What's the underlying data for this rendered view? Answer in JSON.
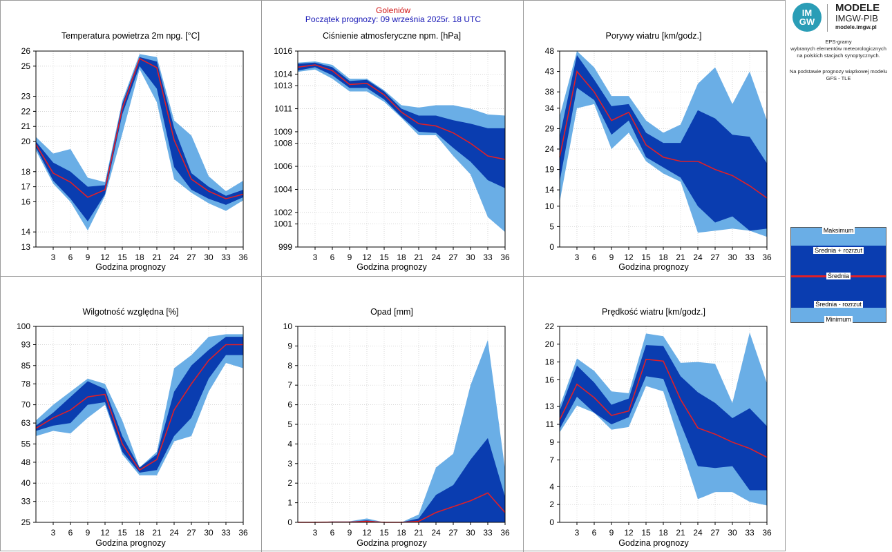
{
  "header": {
    "station": "Goleniów",
    "forecast_start": "Początek prognozy: 09 września 2025r. 18 UTC"
  },
  "logo": {
    "mark_line1": "IM",
    "mark_line2": "GW",
    "title_line1": "MODELE",
    "title_line2": "IMGW-PIB",
    "url": "modele.imgw.pl"
  },
  "info": {
    "line1": "EPS-gramy",
    "line2": "wybranych elementów meteorologicznych",
    "line3": "na polskich stacjach  synoptycznych.",
    "line4": "Na podstawie prognozy wiązkowej modelu",
    "line5": "GFS - TLE"
  },
  "legend": {
    "max": "Maksimum",
    "mean_plus": "Średnia + rozrzut",
    "mean": "Średnia",
    "mean_minus": "Średnia - rozrzut",
    "min": "Minimum"
  },
  "colors": {
    "outer_band": "#6aaee6",
    "inner_band": "#0a3db0",
    "mean_line": "#e21f26",
    "header_station": "#d01010",
    "header_start": "#1515b5"
  },
  "chart_data": [
    {
      "type": "area",
      "title": "Temperatura powietrza 2m npg. [°C]",
      "xlabel": "Godzina prognozy",
      "x": [
        0,
        3,
        6,
        9,
        12,
        15,
        18,
        21,
        24,
        27,
        30,
        33,
        36
      ],
      "xticks": [
        3,
        6,
        9,
        12,
        15,
        18,
        21,
        24,
        27,
        30,
        33,
        36
      ],
      "ylim": [
        13,
        26
      ],
      "yticks": [
        13,
        14,
        16,
        17,
        18,
        20,
        21,
        22,
        23,
        25,
        26
      ],
      "ytick_labels": [
        "13",
        "14",
        "16",
        "17",
        "18",
        "20",
        "21",
        "22",
        "23",
        "25",
        "26"
      ],
      "series": [
        {
          "name": "Maksimum",
          "values": [
            20.3,
            19.2,
            19.5,
            17.6,
            17.3,
            22.7,
            25.8,
            25.6,
            21.4,
            20.4,
            17.7,
            16.7,
            17.4
          ]
        },
        {
          "name": "Średnia + rozrzut",
          "values": [
            20.0,
            18.6,
            18.0,
            17.0,
            17.1,
            22.5,
            25.6,
            25.3,
            20.9,
            17.9,
            17.0,
            16.4,
            16.8
          ]
        },
        {
          "name": "Średnia",
          "values": [
            19.8,
            17.9,
            17.3,
            16.3,
            16.8,
            22.2,
            25.5,
            24.9,
            20.1,
            17.5,
            16.7,
            16.2,
            16.5
          ]
        },
        {
          "name": "Średnia - rozrzut",
          "values": [
            19.6,
            17.4,
            16.2,
            14.7,
            16.5,
            21.8,
            25.0,
            23.5,
            18.3,
            16.8,
            16.2,
            15.8,
            16.3
          ]
        },
        {
          "name": "Minimum",
          "values": [
            19.4,
            17.2,
            16.0,
            14.1,
            16.4,
            20.5,
            24.8,
            22.6,
            17.5,
            16.6,
            15.9,
            15.4,
            16.1
          ]
        }
      ]
    },
    {
      "type": "area",
      "title": "Ciśnienie atmosferyczne npm. [hPa]",
      "xlabel": "Godzina prognozy",
      "x": [
        0,
        3,
        6,
        9,
        12,
        15,
        18,
        21,
        24,
        27,
        30,
        33,
        36
      ],
      "xticks": [
        3,
        6,
        9,
        12,
        15,
        18,
        21,
        24,
        27,
        30,
        33,
        36
      ],
      "ylim": [
        999,
        1016
      ],
      "yticks": [
        999,
        1001,
        1002,
        1004,
        1006,
        1008,
        1009,
        1011,
        1013,
        1014,
        1016
      ],
      "ytick_labels": [
        "999",
        "1001",
        "1002",
        "1004",
        "1006",
        "1008",
        "1009",
        "1011",
        "1013",
        "1014",
        "1016"
      ],
      "series": [
        {
          "name": "Maksimum",
          "values": [
            1015.0,
            1015.1,
            1014.8,
            1013.6,
            1013.6,
            1012.6,
            1011.3,
            1011.1,
            1011.3,
            1011.3,
            1011.0,
            1010.5,
            1010.4
          ]
        },
        {
          "name": "Średnia + rozrzut",
          "values": [
            1014.9,
            1015.0,
            1014.6,
            1013.4,
            1013.5,
            1012.5,
            1011.0,
            1010.4,
            1010.4,
            1010.0,
            1009.7,
            1009.3,
            1009.3
          ]
        },
        {
          "name": "Średnia",
          "values": [
            1014.6,
            1014.8,
            1014.3,
            1013.1,
            1013.2,
            1012.2,
            1010.7,
            1009.7,
            1009.5,
            1008.9,
            1008.0,
            1006.9,
            1006.6
          ]
        },
        {
          "name": "Średnia - rozrzut",
          "values": [
            1014.3,
            1014.6,
            1013.9,
            1012.8,
            1012.8,
            1011.8,
            1010.3,
            1009.0,
            1008.9,
            1007.6,
            1006.4,
            1004.8,
            1004.1
          ]
        },
        {
          "name": "Minimum",
          "values": [
            1014.2,
            1014.4,
            1013.6,
            1012.5,
            1012.5,
            1011.6,
            1010.2,
            1008.7,
            1008.7,
            1006.9,
            1005.3,
            1001.6,
            1000.3
          ]
        }
      ]
    },
    {
      "type": "area",
      "title": "Porywy wiatru [km/godz.]",
      "xlabel": "Godzina prognozy",
      "x": [
        0,
        3,
        6,
        9,
        12,
        15,
        18,
        21,
        24,
        27,
        30,
        33,
        36
      ],
      "xticks": [
        3,
        6,
        9,
        12,
        15,
        18,
        21,
        24,
        27,
        30,
        33,
        36
      ],
      "ylim": [
        0,
        48
      ],
      "yticks": [
        0,
        5,
        10,
        14,
        19,
        24,
        29,
        34,
        38,
        43,
        48
      ],
      "ytick_labels": [
        "0",
        "5",
        "10",
        "14",
        "19",
        "24",
        "29",
        "34",
        "38",
        "43",
        "48"
      ],
      "series": [
        {
          "name": "Maksimum",
          "values": [
            32,
            48,
            44,
            37,
            37,
            31,
            28,
            30,
            40,
            44,
            35,
            43,
            31
          ]
        },
        {
          "name": "Średnia + rozrzut",
          "values": [
            27,
            47,
            41,
            34.5,
            35,
            28,
            25.5,
            25.5,
            33.5,
            31.5,
            27.5,
            27,
            20.5
          ]
        },
        {
          "name": "Średnia",
          "values": [
            22,
            43,
            38,
            31,
            33,
            25,
            22,
            21,
            21,
            19,
            17.5,
            15,
            12
          ]
        },
        {
          "name": "Średnia - rozrzut",
          "values": [
            16,
            39,
            36,
            27.5,
            31,
            22,
            19.5,
            17,
            10,
            6,
            7.5,
            4,
            4.5
          ]
        },
        {
          "name": "Minimum",
          "values": [
            11,
            34,
            35,
            24,
            28,
            21,
            18,
            16,
            3.5,
            4,
            4.5,
            4,
            2.5
          ]
        }
      ]
    },
    {
      "type": "area",
      "title": "Wilgotność względna [%]",
      "xlabel": "Godzina prognozy",
      "x": [
        0,
        3,
        6,
        9,
        12,
        15,
        18,
        21,
        24,
        27,
        30,
        33,
        36
      ],
      "xticks": [
        3,
        6,
        9,
        12,
        15,
        18,
        21,
        24,
        27,
        30,
        33,
        36
      ],
      "ylim": [
        25,
        100
      ],
      "yticks": [
        25,
        33,
        40,
        48,
        55,
        63,
        70,
        78,
        85,
        93,
        100
      ],
      "ytick_labels": [
        "25",
        "33",
        "40",
        "48",
        "55",
        "63",
        "70",
        "78",
        "85",
        "93",
        "100"
      ],
      "series": [
        {
          "name": "Maksimum",
          "values": [
            64,
            70,
            75,
            80,
            78,
            64,
            46,
            52,
            84,
            89,
            96,
            97,
            97
          ]
        },
        {
          "name": "Średnia + rozrzut",
          "values": [
            62,
            67,
            73,
            79,
            76,
            58,
            46,
            51,
            75,
            85,
            91,
            96,
            96
          ]
        },
        {
          "name": "Średnia",
          "values": [
            61,
            65,
            68,
            73,
            74,
            55,
            45,
            49,
            68,
            78,
            87,
            93,
            93
          ]
        },
        {
          "name": "Średnia - rozrzut",
          "values": [
            60,
            62,
            63,
            70,
            71,
            52,
            44,
            45,
            58,
            65,
            80,
            89,
            89
          ]
        },
        {
          "name": "Minimum",
          "values": [
            58,
            60,
            59,
            65,
            70,
            51,
            43,
            43,
            56,
            58,
            75,
            86,
            84
          ]
        }
      ]
    },
    {
      "type": "area",
      "title": "Opad [mm]",
      "xlabel": "Godzina prognozy",
      "x": [
        0,
        3,
        6,
        9,
        12,
        15,
        18,
        21,
        24,
        27,
        30,
        33,
        36
      ],
      "xticks": [
        3,
        6,
        9,
        12,
        15,
        18,
        21,
        24,
        27,
        30,
        33,
        36
      ],
      "ylim": [
        0,
        10
      ],
      "yticks": [
        0,
        1,
        2,
        3,
        4,
        5,
        6,
        7,
        8,
        9,
        10
      ],
      "ytick_labels": [
        "0",
        "1",
        "2",
        "3",
        "4",
        "5",
        "6",
        "7",
        "8",
        "9",
        "10"
      ],
      "series": [
        {
          "name": "Maksimum",
          "values": [
            0,
            0,
            0.05,
            0.05,
            0.2,
            0,
            0,
            0.4,
            2.8,
            3.5,
            7.0,
            9.3,
            2.7
          ]
        },
        {
          "name": "Średnia + rozrzut",
          "values": [
            0,
            0,
            0.03,
            0.03,
            0.1,
            0,
            0,
            0.2,
            1.4,
            1.9,
            3.2,
            4.3,
            1.3
          ]
        },
        {
          "name": "Średnia",
          "values": [
            0,
            0,
            0.01,
            0.01,
            0.05,
            0,
            0,
            0.05,
            0.5,
            0.8,
            1.1,
            1.5,
            0.5
          ]
        },
        {
          "name": "Średnia - rozrzut",
          "values": [
            0,
            0,
            0,
            0,
            0,
            0,
            0,
            0,
            0,
            0,
            0,
            0,
            0
          ]
        },
        {
          "name": "Minimum",
          "values": [
            0,
            0,
            0,
            0,
            0,
            0,
            0,
            0,
            0,
            0,
            0,
            0,
            0
          ]
        }
      ]
    },
    {
      "type": "area",
      "title": "Prędkość wiatru [km/godz.]",
      "xlabel": "Godzina prognozy",
      "x": [
        0,
        3,
        6,
        9,
        12,
        15,
        18,
        21,
        24,
        27,
        30,
        33,
        36
      ],
      "xticks": [
        3,
        6,
        9,
        12,
        15,
        18,
        21,
        24,
        27,
        30,
        33,
        36
      ],
      "ylim": [
        0,
        22
      ],
      "yticks": [
        0,
        2,
        4,
        7,
        9,
        11,
        13,
        16,
        18,
        20,
        22
      ],
      "ytick_labels": [
        "0",
        "2",
        "4",
        "7",
        "9",
        "11",
        "13",
        "16",
        "18",
        "20",
        "22"
      ],
      "series": [
        {
          "name": "Maksimum",
          "values": [
            13,
            18.4,
            17,
            14.7,
            14.5,
            21.2,
            20.9,
            17.9,
            18,
            17.8,
            13.4,
            21.3,
            15.6
          ]
        },
        {
          "name": "Średnia + rozrzut",
          "values": [
            12.5,
            17.6,
            15.7,
            13.2,
            13.9,
            19.9,
            19.8,
            16.4,
            14.6,
            13.4,
            11.7,
            12.8,
            10.8
          ]
        },
        {
          "name": "Średnia",
          "values": [
            11.5,
            15.5,
            14,
            12,
            12.5,
            18.3,
            18.1,
            13.8,
            10.6,
            9.9,
            9,
            8.3,
            7.3
          ]
        },
        {
          "name": "Średnia - rozrzut",
          "values": [
            10.5,
            14.1,
            12.3,
            11,
            11.8,
            16.4,
            16.1,
            11.1,
            6.3,
            6.1,
            6.3,
            3.6,
            3.6
          ]
        },
        {
          "name": "Minimum",
          "values": [
            10.1,
            13.1,
            12.3,
            10.4,
            10.7,
            15.3,
            14.7,
            8.6,
            2.6,
            3.4,
            3.4,
            2.3,
            1.9
          ]
        }
      ]
    }
  ]
}
